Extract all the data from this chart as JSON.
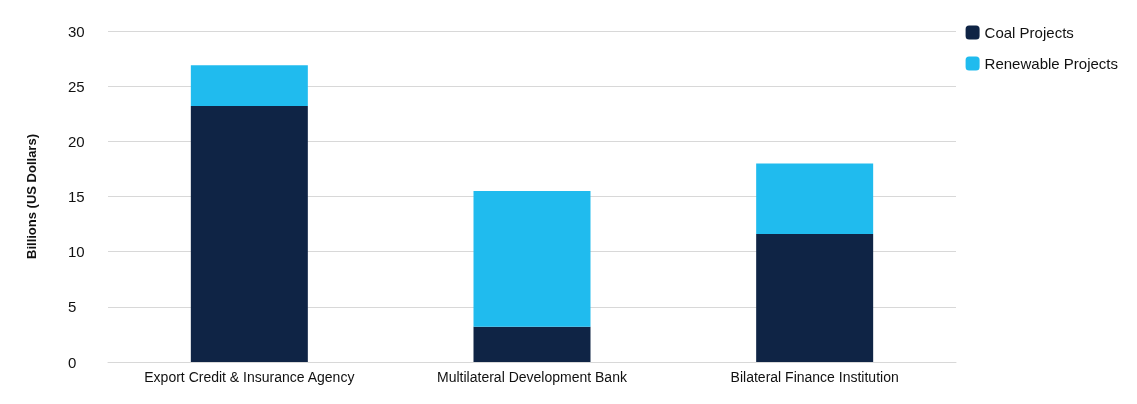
{
  "chart_data": {
    "type": "bar",
    "stacked": true,
    "ylabel": "Billions (US Dollars)",
    "categories": [
      "Export Credit & Insurance Agency",
      "Multilateral Development Bank",
      "Bilateral Finance Institution"
    ],
    "series": [
      {
        "name": "Coal Projects",
        "color": "#0f2445",
        "values": [
          23.2,
          3.2,
          11.6
        ]
      },
      {
        "name": "Renewable Projects",
        "color": "#20bbee",
        "values": [
          3.7,
          12.3,
          6.4
        ]
      }
    ],
    "ylim": [
      0,
      30
    ],
    "yticks": [
      0,
      5,
      10,
      15,
      20,
      25,
      30
    ],
    "grid": "y",
    "legend": "top right"
  }
}
